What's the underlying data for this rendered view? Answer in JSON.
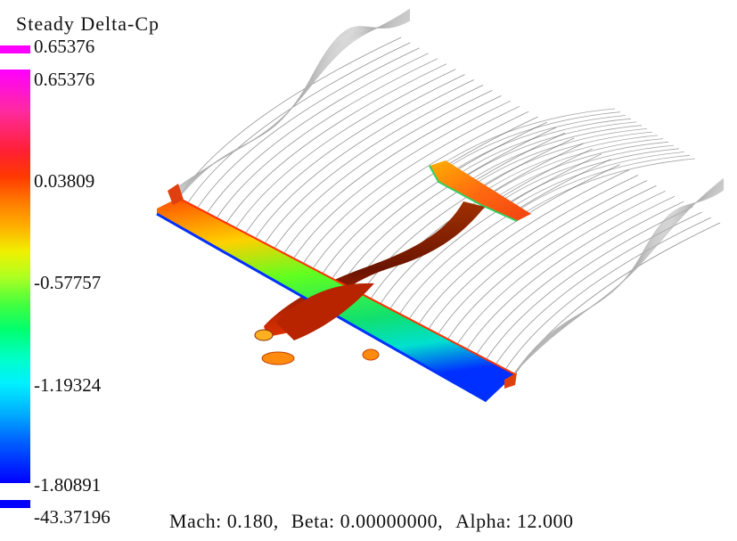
{
  "legend": {
    "title": "Steady  Delta-Cp",
    "max_label": "0.65376",
    "min_label": "-43.37196",
    "ticks": [
      "0.65376",
      "0.03809",
      "-0.57757",
      "-1.19324",
      "-1.80891"
    ],
    "top_swatch_color": "#ff00ff",
    "bottom_swatch_color": "#0000ff"
  },
  "footer": {
    "mach_label": "Mach:",
    "mach_value": "0.180,",
    "beta_label": "Beta:",
    "beta_value": "0.00000000,",
    "alpha_label": "Alpha:",
    "alpha_value": "12.000"
  },
  "colors": {
    "wake": "#3a3a3a",
    "wake_tip": "#b0b0b0",
    "leading_edge": "#ff2a00",
    "trailing_edge": "#0030ff",
    "fuselage": "#7a1a00",
    "tail": "#f05a10"
  }
}
